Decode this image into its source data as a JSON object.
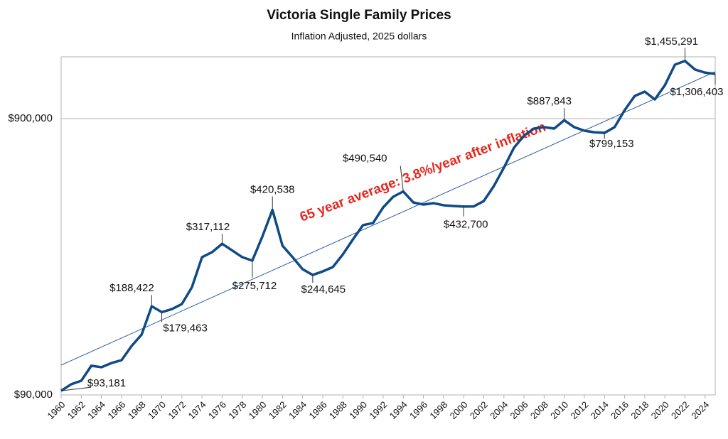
{
  "chart_data": {
    "type": "line",
    "title": "Victoria Single Family Prices",
    "subtitle": "Inflation Adjusted, 2025 dollars",
    "annotation": "65 year average: 3.8%/year after inflation",
    "log_scale": true,
    "grid": true,
    "xlim": [
      1960,
      2025
    ],
    "xticks": [
      1960,
      1962,
      1964,
      1966,
      1968,
      1970,
      1972,
      1974,
      1976,
      1978,
      1980,
      1982,
      1984,
      1986,
      1988,
      1990,
      1992,
      1994,
      1996,
      1998,
      2000,
      2002,
      2004,
      2006,
      2008,
      2010,
      2012,
      2014,
      2016,
      2018,
      2020,
      2022,
      2024
    ],
    "ylim": [
      90000,
      1506000
    ],
    "yticks": [
      {
        "value": 90000,
        "label": "$90,000"
      },
      {
        "value": 900000,
        "label": "$900,000"
      }
    ],
    "series": [
      {
        "color": "#0f4a87",
        "x": [
          1960,
          1961,
          1962,
          1963,
          1964,
          1965,
          1966,
          1967,
          1968,
          1969,
          1970,
          1971,
          1972,
          1973,
          1974,
          1975,
          1976,
          1977,
          1978,
          1979,
          1980,
          1981,
          1982,
          1983,
          1984,
          1985,
          1986,
          1987,
          1988,
          1989,
          1990,
          1991,
          1992,
          1993,
          1994,
          1995,
          1996,
          1997,
          1998,
          1999,
          2000,
          2001,
          2002,
          2003,
          2004,
          2005,
          2006,
          2007,
          2008,
          2009,
          2010,
          2011,
          2012,
          2013,
          2014,
          2015,
          2016,
          2017,
          2018,
          2019,
          2020,
          2021,
          2022,
          2023,
          2024,
          2025
        ],
        "values": [
          93181,
          98400,
          101300,
          114800,
          113400,
          117400,
          120200,
          135300,
          148900,
          188422,
          179463,
          184000,
          192000,
          221000,
          283700,
          295800,
          317112,
          300000,
          283700,
          275712,
          337000,
          420538,
          312000,
          283700,
          256600,
          244645,
          252000,
          261200,
          290500,
          329000,
          370500,
          377200,
          429400,
          469300,
          490540,
          447600,
          439800,
          445000,
          437200,
          434600,
          432700,
          433000,
          452700,
          512800,
          598000,
          706000,
          780800,
          828400,
          838000,
          828400,
          887843,
          838000,
          813800,
          803000,
          799153,
          838000,
          965600,
          1087000,
          1127000,
          1056000,
          1189000,
          1411000,
          1455291,
          1354000,
          1320000,
          1306403
        ],
        "value_labels": [
          "$93,181",
          null,
          null,
          null,
          null,
          null,
          null,
          null,
          null,
          "$188,422",
          "$179,463",
          null,
          null,
          null,
          null,
          null,
          "$317,112",
          null,
          null,
          "$275,712",
          null,
          "$420,538",
          null,
          null,
          null,
          "$244,645",
          null,
          null,
          null,
          null,
          null,
          null,
          null,
          null,
          "$490,540",
          null,
          null,
          null,
          null,
          null,
          "$432,700",
          null,
          null,
          null,
          null,
          null,
          null,
          null,
          null,
          null,
          "$887,843",
          null,
          null,
          null,
          "$799,153",
          null,
          null,
          null,
          null,
          null,
          null,
          null,
          "$1,455,291",
          null,
          null,
          "$1,306,403"
        ]
      }
    ],
    "trend": {
      "color": "#2e5fa3",
      "x": [
        1960,
        2025
      ],
      "values": [
        115400,
        1330000
      ]
    }
  }
}
